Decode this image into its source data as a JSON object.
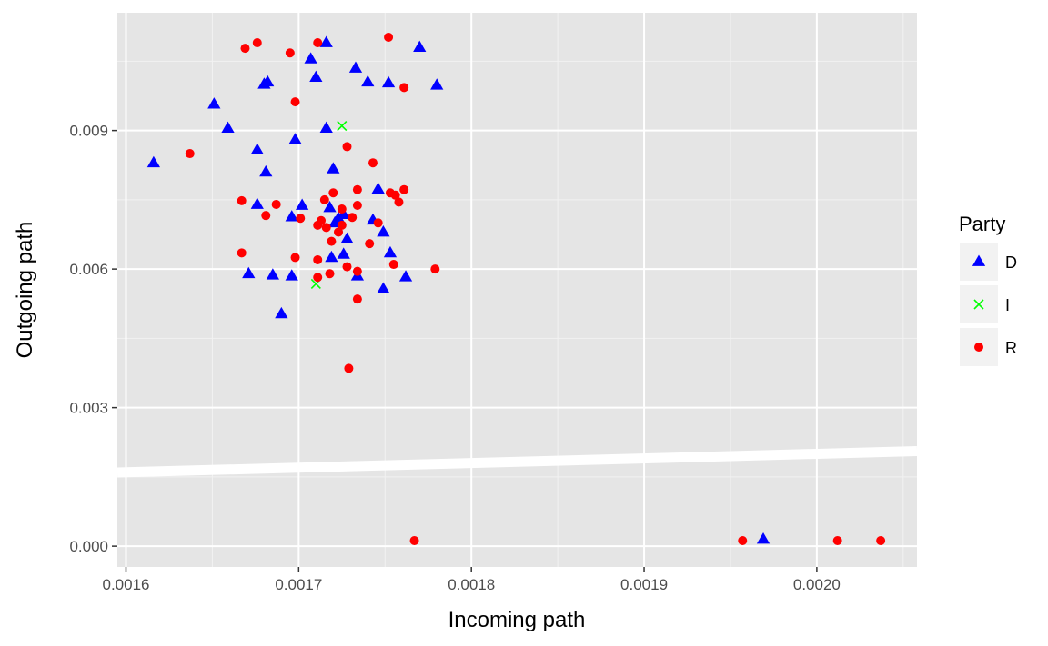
{
  "chart_data": {
    "type": "scatter",
    "xlabel": "Incoming path",
    "ylabel": "Outgoing path",
    "xlim": [
      0.001595,
      0.002058
    ],
    "ylim": [
      -0.00045,
      0.01155
    ],
    "x_ticks": [
      0.0016,
      0.0017,
      0.0018,
      0.0019,
      0.002
    ],
    "x_tick_labels": [
      "0.0016",
      "0.0017",
      "0.0018",
      "0.0019",
      "0.0020"
    ],
    "y_ticks": [
      0.0,
      0.003,
      0.006,
      0.009
    ],
    "y_tick_labels": [
      "0.000",
      "0.003",
      "0.006",
      "0.009"
    ],
    "grid": true,
    "legend": {
      "title": "Party",
      "position": "right"
    },
    "reference_line": {
      "slope": 1,
      "intercept": 0
    },
    "series": [
      {
        "name": "D",
        "shape": "triangle",
        "color": "#0000ff",
        "x": [
          0.001716,
          0.001707,
          0.00177,
          0.00171,
          0.001733,
          0.00178,
          0.001682,
          0.00168,
          0.00174,
          0.001752,
          0.001651,
          0.001659,
          0.001716,
          0.001698,
          0.001616,
          0.001676,
          0.00172,
          0.001681,
          0.001746,
          0.001676,
          0.001702,
          0.001696,
          0.001718,
          0.001723,
          0.001726,
          0.001743,
          0.001721,
          0.001749,
          0.001728,
          0.001753,
          0.001719,
          0.001726,
          0.001671,
          0.001685,
          0.001696,
          0.001734,
          0.001762,
          0.001749,
          0.00169,
          0.001969
        ],
        "y": [
          0.0109,
          0.01055,
          0.0108,
          0.01015,
          0.01035,
          0.00998,
          0.01005,
          0.01,
          0.01005,
          0.01003,
          0.00957,
          0.00905,
          0.00905,
          0.0088,
          0.0083,
          0.00858,
          0.00817,
          0.0081,
          0.00773,
          0.0074,
          0.00738,
          0.00713,
          0.00733,
          0.0071,
          0.00718,
          0.00706,
          0.007,
          0.0068,
          0.00665,
          0.00635,
          0.00625,
          0.00632,
          0.0059,
          0.00587,
          0.00585,
          0.00585,
          0.00583,
          0.00557,
          0.00503,
          0.00015
        ]
      },
      {
        "name": "I",
        "shape": "cross",
        "color": "#00ff00",
        "x": [
          0.001725,
          0.00171
        ],
        "y": [
          0.0091,
          0.00568
        ]
      },
      {
        "name": "R",
        "shape": "circle",
        "color": "#ff0000",
        "x": [
          0.001669,
          0.001676,
          0.001711,
          0.001695,
          0.001752,
          0.001761,
          0.001698,
          0.001728,
          0.001637,
          0.001743,
          0.001734,
          0.001753,
          0.001761,
          0.001756,
          0.00172,
          0.001715,
          0.001758,
          0.001667,
          0.001687,
          0.001734,
          0.001725,
          0.001681,
          0.001701,
          0.001713,
          0.001731,
          0.001746,
          0.001725,
          0.001711,
          0.001716,
          0.001723,
          0.001719,
          0.001741,
          0.001667,
          0.001698,
          0.001711,
          0.001755,
          0.001779,
          0.001728,
          0.001734,
          0.001718,
          0.001711,
          0.001734,
          0.001729,
          0.001767,
          0.001957,
          0.002012,
          0.002037
        ],
        "y": [
          0.01078,
          0.0109,
          0.0109,
          0.01068,
          0.01102,
          0.00993,
          0.00962,
          0.00865,
          0.0085,
          0.0083,
          0.00772,
          0.00765,
          0.00772,
          0.0076,
          0.00765,
          0.0075,
          0.00745,
          0.00748,
          0.0074,
          0.00738,
          0.0073,
          0.00716,
          0.0071,
          0.00705,
          0.00712,
          0.007,
          0.00695,
          0.00695,
          0.0069,
          0.0068,
          0.0066,
          0.00655,
          0.00635,
          0.00625,
          0.0062,
          0.0061,
          0.006,
          0.00605,
          0.00595,
          0.0059,
          0.00582,
          0.00535,
          0.00385,
          0.00012,
          0.00012,
          0.00012,
          0.00012
        ]
      }
    ]
  }
}
